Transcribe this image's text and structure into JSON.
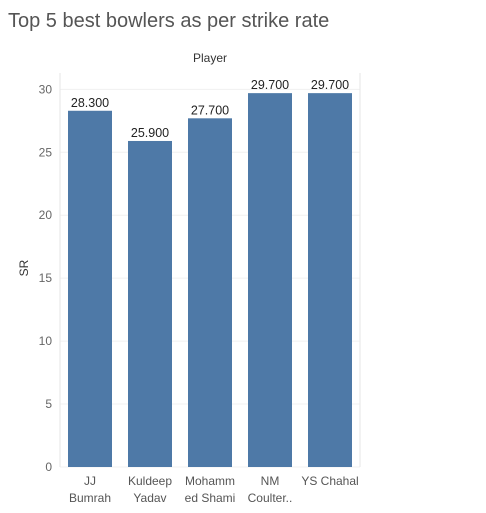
{
  "chart_data": {
    "type": "bar",
    "title": "Top 5 best bowlers as per strike rate",
    "column_header": "Player",
    "ylabel": "SR",
    "xlabel": "",
    "categories": [
      "JJ\nBumrah",
      "Kuldeep\nYadav",
      "Mohamm\ned Shami",
      "NM\nCoulter..",
      "YS Chahal"
    ],
    "values": [
      28.3,
      25.9,
      27.7,
      29.7,
      29.7
    ],
    "data_labels": [
      "28.300",
      "25.900",
      "27.700",
      "29.700",
      "29.700"
    ],
    "yticks": [
      0,
      5,
      10,
      15,
      20,
      25,
      30
    ],
    "ylim": [
      0,
      31.3
    ],
    "grid": true,
    "colors": {
      "bar": "#4e79a7"
    }
  }
}
